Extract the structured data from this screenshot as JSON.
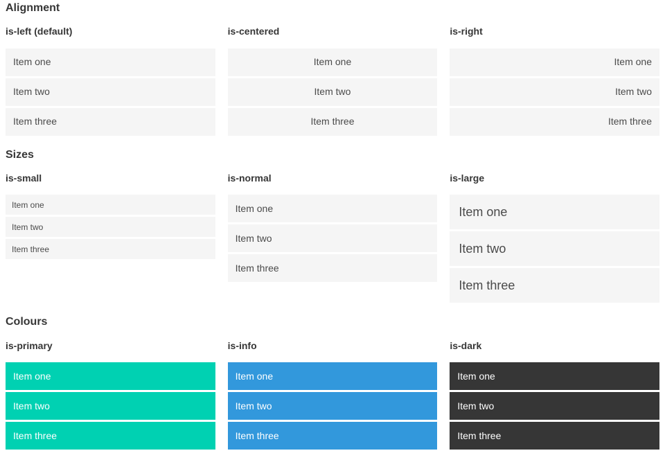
{
  "page": {
    "sections": [
      {
        "title": "Alignment",
        "columns": [
          {
            "label": "is-left (default)",
            "variant": "left",
            "items": [
              "Item one",
              "Item two",
              "Item three"
            ]
          },
          {
            "label": "is-centered",
            "variant": "centered",
            "items": [
              "Item one",
              "Item two",
              "Item three"
            ]
          },
          {
            "label": "is-right",
            "variant": "right",
            "items": [
              "Item one",
              "Item two",
              "Item three"
            ]
          }
        ]
      },
      {
        "title": "Sizes",
        "columns": [
          {
            "label": "is-small",
            "variant": "small",
            "items": [
              "Item one",
              "Item two",
              "Item three"
            ]
          },
          {
            "label": "is-normal",
            "variant": "normal",
            "items": [
              "Item one",
              "Item two",
              "Item three"
            ]
          },
          {
            "label": "is-large",
            "variant": "large",
            "items": [
              "Item one",
              "Item two",
              "Item three"
            ]
          }
        ]
      },
      {
        "title": "Colours",
        "columns": [
          {
            "label": "is-primary",
            "variant": "primary",
            "items": [
              "Item one",
              "Item two",
              "Item three"
            ]
          },
          {
            "label": "is-info",
            "variant": "info",
            "items": [
              "Item one",
              "Item two",
              "Item three"
            ]
          },
          {
            "label": "is-dark",
            "variant": "dark",
            "items": [
              "Item one",
              "Item two",
              "Item three"
            ]
          }
        ]
      }
    ],
    "colors": {
      "primary": "#00d1b2",
      "info": "#3298dc",
      "dark": "#363636",
      "item_background": "#f5f5f5",
      "item_text": "#4a4a4a",
      "heading_text": "#363636"
    }
  }
}
